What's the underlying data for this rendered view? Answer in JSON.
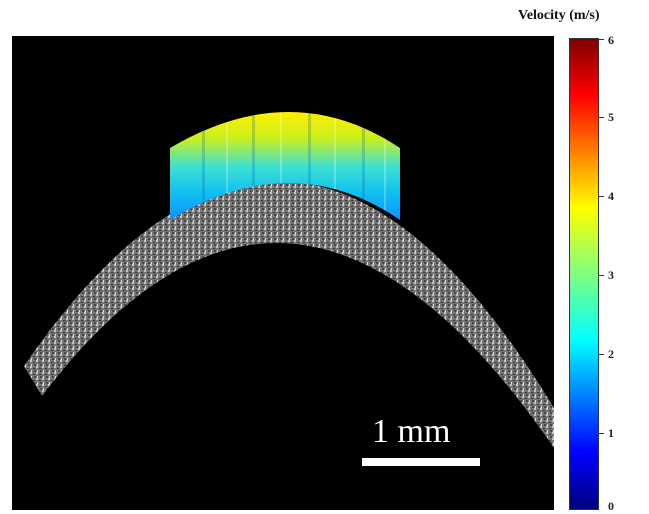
{
  "scale_bar": {
    "label": "1 mm"
  },
  "colorbar": {
    "title": "Velocity (m/s)",
    "ticks": [
      "6",
      "5",
      "4",
      "3",
      "2",
      "1",
      "0"
    ],
    "range": [
      0,
      6
    ],
    "colors": [
      "#00007f",
      "#0000ff",
      "#007fff",
      "#00ffff",
      "#7fff7f",
      "#ffff00",
      "#ff7f00",
      "#ff0000",
      "#7f0000"
    ]
  },
  "image": {
    "background": "#000000",
    "tissue_color": "#d0d0d0"
  }
}
